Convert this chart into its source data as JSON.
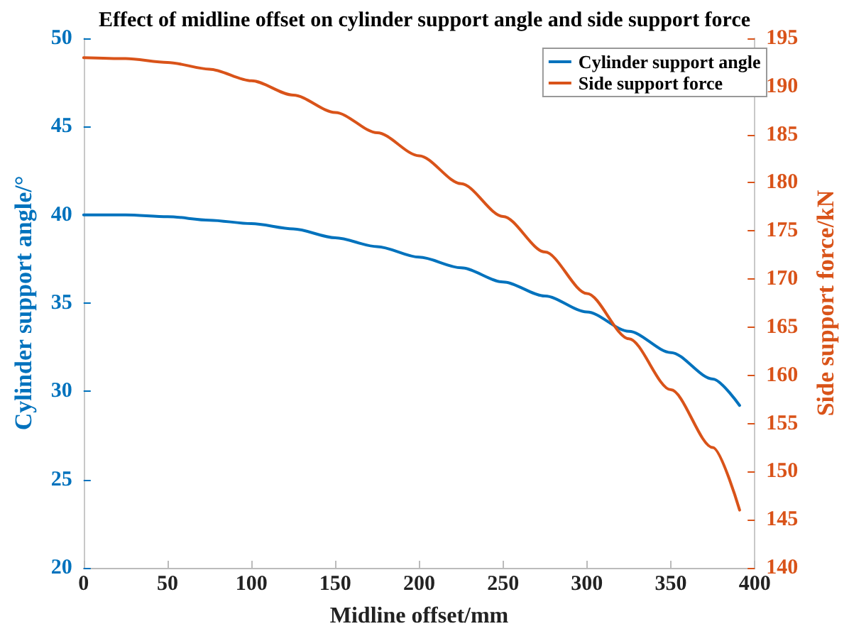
{
  "chart_data": {
    "type": "line",
    "title": "Effect of midline offset on cylinder support angle and side support force",
    "xlabel": "Midline offset/mm",
    "ylabel": "Cylinder support angle/°",
    "y2label": "Side support force/kN",
    "x": [
      0,
      25,
      50,
      75,
      100,
      125,
      150,
      175,
      200,
      225,
      250,
      275,
      300,
      325,
      350,
      375,
      391
    ],
    "series": [
      {
        "name": "Cylinder support angle",
        "color": "#0072bd",
        "values": [
          40,
          40.0,
          39.9,
          39.7,
          39.5,
          39.2,
          38.7,
          38.2,
          37.6,
          37.0,
          36.2,
          35.4,
          34.5,
          33.4,
          32.2,
          30.7,
          29.2
        ]
      },
      {
        "name": "Side support force",
        "color": "#d95319",
        "axis": "y2",
        "values": [
          193,
          192.9,
          192.5,
          191.8,
          190.6,
          189.1,
          187.3,
          185.2,
          182.8,
          179.9,
          176.5,
          172.8,
          168.5,
          163.8,
          158.5,
          152.5,
          146
        ]
      }
    ],
    "xlim": [
      0,
      400
    ],
    "xticks": [
      0,
      50,
      100,
      150,
      200,
      250,
      300,
      350,
      400
    ],
    "ylim": [
      20,
      50
    ],
    "yticks": [
      20,
      25,
      30,
      35,
      40,
      45,
      50
    ],
    "y2lim": [
      140,
      195
    ],
    "y2ticks": [
      140,
      145,
      150,
      155,
      160,
      165,
      170,
      175,
      180,
      185,
      190,
      195
    ],
    "grid": false,
    "legend": "top right",
    "marker": "none",
    "line_style": "solid"
  }
}
